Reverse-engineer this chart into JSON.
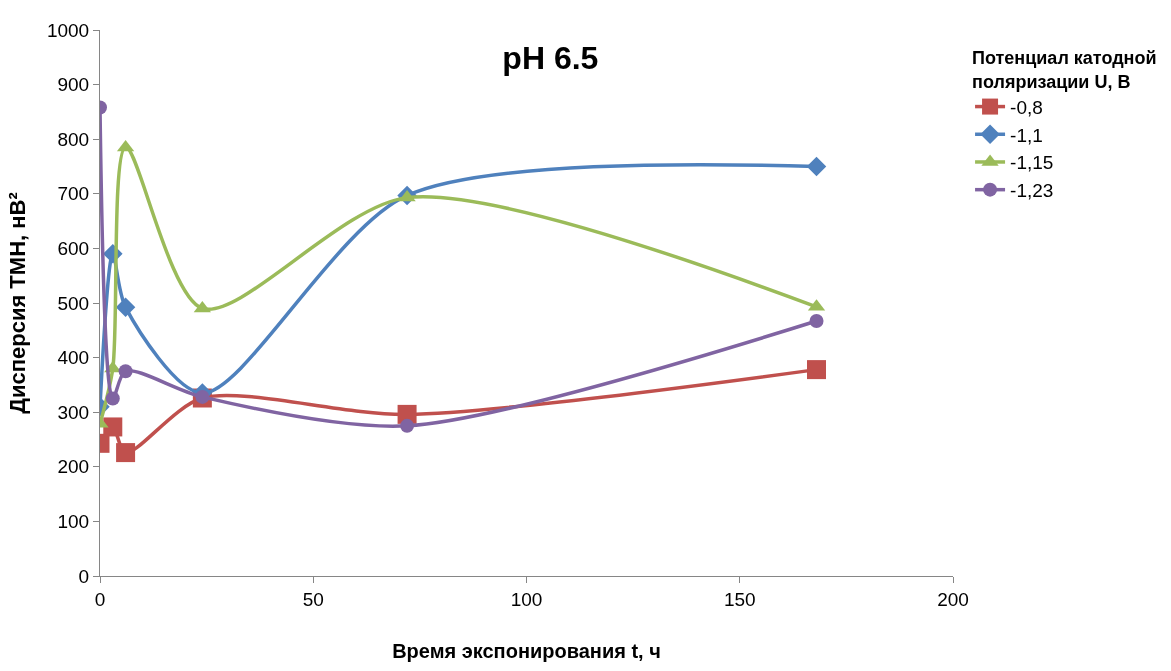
{
  "chart_data": {
    "type": "line",
    "title": "pH 6.5",
    "xlabel": "Время экспонирования t, ч",
    "ylabel": "Дисперсия ТМН, нВ²",
    "legend_title": "Потенциал катодной поляризации U, В",
    "x": [
      0,
      3,
      6,
      24,
      72,
      168
    ],
    "series": [
      {
        "name": "-0,8",
        "color": "#c0504d",
        "marker": "square",
        "values": [
          243,
          273,
          226,
          326,
          296,
          378
        ]
      },
      {
        "name": "-1,1",
        "color": "#4f81bd",
        "marker": "diamond",
        "values": [
          310,
          590,
          492,
          335,
          697,
          750
        ]
      },
      {
        "name": "-1,15",
        "color": "#9bbb59",
        "marker": "triangle",
        "values": [
          279,
          380,
          785,
          490,
          693,
          493
        ]
      },
      {
        "name": "-1,23",
        "color": "#8064a2",
        "marker": "circle",
        "values": [
          858,
          325,
          375,
          328,
          275,
          467
        ]
      }
    ],
    "xlim": [
      0,
      200
    ],
    "xticks": [
      0,
      50,
      100,
      150,
      200
    ],
    "ylim": [
      0,
      1000
    ],
    "yticks": [
      0,
      100,
      200,
      300,
      400,
      500,
      600,
      700,
      800,
      900,
      1000
    ],
    "grid": false,
    "legend": "right",
    "line_style": "solid"
  }
}
